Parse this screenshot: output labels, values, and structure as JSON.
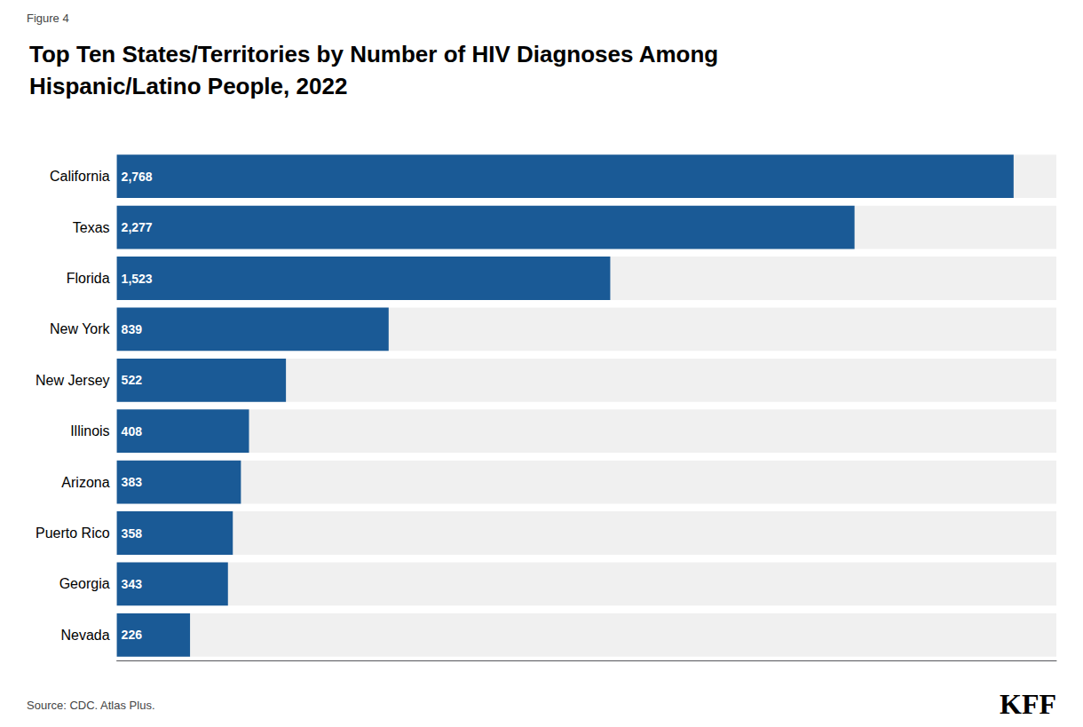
{
  "chart_data": {
    "type": "bar",
    "title": "Top Ten States/Territories by Number of HIV Diagnoses Among\nHispanic/Latino People, 2022",
    "categories": [
      "California",
      "Texas",
      "Florida",
      "New York",
      "New Jersey",
      "Illinois",
      "Arizona",
      "Puerto Rico",
      "Georgia",
      "Nevada"
    ],
    "values": [
      2768,
      2277,
      1523,
      839,
      522,
      408,
      383,
      358,
      343,
      226
    ],
    "value_labels": [
      "2,768",
      "2,277",
      "1,523",
      "839",
      "522",
      "408",
      "383",
      "358",
      "343",
      "226"
    ],
    "color": "#1a5a96",
    "orientation": "horizontal",
    "data_labels": true,
    "xlim": [
      0,
      2900
    ],
    "tick_labels": "y",
    "grid": false,
    "annotations": [
      "Figure 4",
      "Source: CDC. Atlas Plus.",
      "KFF"
    ]
  }
}
